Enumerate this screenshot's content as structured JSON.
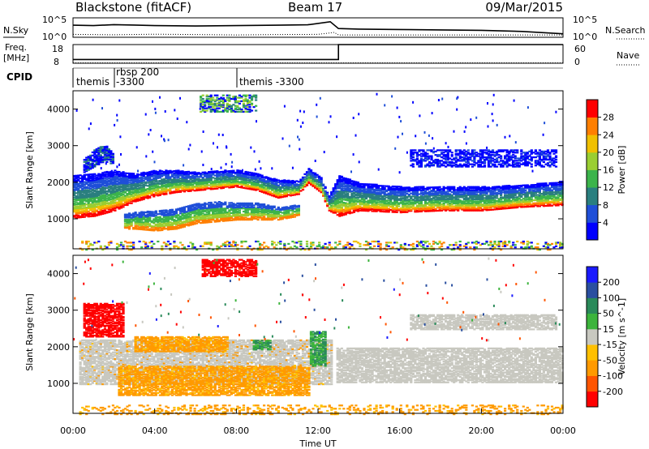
{
  "header": {
    "station": "Blackstone (fitACF)",
    "beam": "Beam 17",
    "date": "09/Mar/2015"
  },
  "chart_data": [
    {
      "panel": "noise",
      "type": "line",
      "left_label": "N.Sky",
      "right_label": "N.Search",
      "left_ticks": [
        "10^5",
        "10^0"
      ],
      "right_ticks": [
        "10^5",
        "10^0"
      ],
      "series": [
        {
          "name": "N.Sky",
          "style": "solid",
          "x": [
            0,
            1,
            2,
            3,
            4,
            6,
            8,
            10,
            11.5,
            12.6,
            13,
            14,
            16,
            18,
            20,
            22,
            24
          ],
          "y": [
            0.62,
            0.6,
            0.65,
            0.63,
            0.6,
            0.58,
            0.6,
            0.62,
            0.64,
            0.8,
            0.45,
            0.42,
            0.4,
            0.38,
            0.36,
            0.3,
            0.18
          ]
        },
        {
          "name": "N.Search",
          "style": "dotted",
          "x": [
            0,
            2,
            4,
            6,
            8,
            10,
            12,
            12.8,
            13,
            16,
            20,
            24
          ],
          "y": [
            0.15,
            0.13,
            0.16,
            0.14,
            0.12,
            0.14,
            0.15,
            0.25,
            0.12,
            0.12,
            0.12,
            0.12
          ]
        }
      ]
    },
    {
      "panel": "freq-nave",
      "type": "line",
      "left_label_1": "Freq.",
      "left_label_2": "[MHz]",
      "right_label": "Nave",
      "left_ticks": [
        "18",
        "8"
      ],
      "right_ticks": [
        "60",
        "0"
      ],
      "series": [
        {
          "name": "Freq.",
          "style": "solid",
          "x": [
            0,
            13,
            13,
            24
          ],
          "y": [
            10,
            10,
            18,
            18
          ]
        },
        {
          "name": "Nave",
          "style": "dotted",
          "x": [
            0,
            24
          ],
          "y": [
            1,
            1
          ]
        }
      ]
    },
    {
      "panel": "cpid",
      "left_label": "CPID",
      "segments": [
        {
          "start": 0,
          "label_1": "themis",
          "label_2": ""
        },
        {
          "start": 2,
          "label_1": "rbsp 200",
          "label_2": "-3300"
        },
        {
          "start": 8,
          "label_1": "themis -3300",
          "label_2": ""
        }
      ]
    },
    {
      "panel": "power",
      "type": "heatmap",
      "ylabel": "Slant Range [km]",
      "yticks": [
        1000,
        2000,
        3000,
        4000
      ],
      "ylim": [
        180,
        4500
      ],
      "colorbar": {
        "title": "Power [dB]",
        "ticks": [
          "4",
          "8",
          "12",
          "16",
          "20",
          "24",
          "28"
        ],
        "colors": [
          "#0000ff",
          "#1f4fd8",
          "#2a7f7f",
          "#3cb44b",
          "#9ace32",
          "#f0c000",
          "#ff7f00",
          "#ff0000"
        ]
      },
      "echo_bands": [
        {
          "x": [
            0,
            1,
            2,
            3,
            4,
            5,
            6,
            7,
            8,
            9,
            10,
            11,
            11.5,
            12.1,
            12.5,
            13,
            14,
            16,
            18,
            20,
            22,
            24
          ],
          "y_low": [
            1050,
            1100,
            1250,
            1500,
            1650,
            1750,
            1800,
            1850,
            1900,
            1800,
            1600,
            1700,
            2000,
            1750,
            1250,
            1100,
            1250,
            1200,
            1250,
            1250,
            1350,
            1400
          ],
          "y_high": [
            2200,
            2250,
            2350,
            2250,
            2350,
            2350,
            2300,
            2350,
            2350,
            2250,
            2100,
            2050,
            2400,
            2150,
            1650,
            2200,
            2000,
            1900,
            1900,
            1900,
            1950,
            2050
          ]
        },
        {
          "x": [
            2.5,
            3,
            4,
            5,
            6,
            7,
            8,
            9,
            10,
            11
          ],
          "y_low": [
            750,
            750,
            700,
            750,
            900,
            950,
            1000,
            1000,
            1000,
            1100
          ],
          "y_high": [
            1150,
            1200,
            1250,
            1300,
            1450,
            1500,
            1450,
            1450,
            1350,
            1400
          ]
        },
        {
          "x": [
            0.5,
            1,
            1.5,
            2
          ],
          "y_low": [
            2300,
            2450,
            2600,
            2500
          ],
          "y_high": [
            2650,
            2900,
            3050,
            2800
          ]
        }
      ],
      "patches": [
        {
          "x0": 6.2,
          "x1": 8.9,
          "y0": 3950,
          "y1": 4420
        },
        {
          "x0": 16.5,
          "x1": 23.7,
          "y0": 2450,
          "y1": 2900
        },
        {
          "x0": 0.3,
          "x1": 24,
          "y0": 180,
          "y1": 430
        }
      ]
    },
    {
      "panel": "velocity",
      "type": "heatmap",
      "ylabel": "Slant Range [km]",
      "yticks": [
        1000,
        2000,
        3000,
        4000
      ],
      "ylim": [
        180,
        4500
      ],
      "xlabel": "Time UT",
      "xticks": [
        "00:00",
        "04:00",
        "08:00",
        "12:00",
        "16:00",
        "20:00",
        "00:00"
      ],
      "xlim": [
        0,
        24
      ],
      "colorbar": {
        "title": "Velocity [m s^-1]",
        "ticks": [
          "-200",
          "-100",
          "-50",
          "-15",
          "15",
          "50",
          "100",
          "200"
        ],
        "colors": [
          "#ff0000",
          "#ff5500",
          "#ff9a00",
          "#ffc000",
          "#c8c8c0",
          "#3cb43c",
          "#2a8a5a",
          "#2a4fa0",
          "#1a1aff"
        ]
      },
      "velocity_regions": [
        {
          "x0": 0.3,
          "x1": 12.6,
          "y0": 1000,
          "y1": 2200,
          "value": 0
        },
        {
          "x0": 12.9,
          "x1": 24,
          "y0": 1050,
          "y1": 2000,
          "value": 0
        },
        {
          "x0": 0.5,
          "x1": 2.5,
          "y0": 2300,
          "y1": 3200,
          "value": -200
        },
        {
          "x0": 2.2,
          "x1": 11.5,
          "y0": 700,
          "y1": 1500,
          "value": -40
        },
        {
          "x0": 3.0,
          "x1": 7.5,
          "y0": 1900,
          "y1": 2300,
          "value": -40
        },
        {
          "x0": 6.3,
          "x1": 8.9,
          "y0": 3950,
          "y1": 4420,
          "value": -200
        },
        {
          "x0": 8.8,
          "x1": 9.6,
          "y0": 1950,
          "y1": 2200,
          "value": 50
        },
        {
          "x0": 11.6,
          "x1": 12.3,
          "y0": 1500,
          "y1": 2450,
          "value": 50
        },
        {
          "x0": 16.5,
          "x1": 23.7,
          "y0": 2500,
          "y1": 2900,
          "value": 0
        },
        {
          "x0": 0.3,
          "x1": 24,
          "y0": 180,
          "y1": 430,
          "value": -40
        }
      ]
    }
  ]
}
